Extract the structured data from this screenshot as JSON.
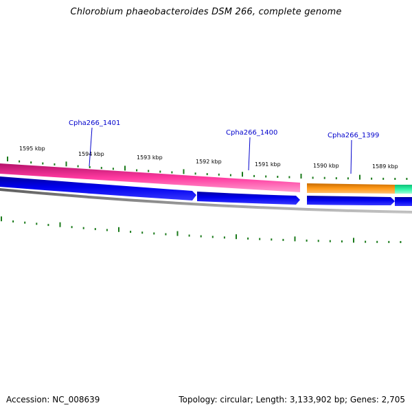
{
  "title": "Chlorobium phaeobacteroides DSM 266, complete genome",
  "footer": {
    "accession": "Accession: NC_008639",
    "stats": "Topology: circular; Length: 3,133,902 bp; Genes: 2,705"
  },
  "view": {
    "topology": "circular",
    "start_kbp": 1588.4,
    "end_kbp": 1595.4
  },
  "tick_labels": [
    "1595 kbp",
    "1594 kbp",
    "1593 kbp",
    "1592 kbp",
    "1591 kbp",
    "1590 kbp",
    "1589 kbp"
  ],
  "gene_labels": [
    "Cpha266_1401",
    "Cpha266_1400",
    "Cpha266_1399"
  ],
  "colors": {
    "tick": "#1a7a1a",
    "backbone": "#808080",
    "gene_label": "#0000cc",
    "forward_genes": "#0000ee",
    "track_magenta": "#e8228a",
    "track_orange": "#f08c00",
    "track_teal": "#1de89b"
  }
}
